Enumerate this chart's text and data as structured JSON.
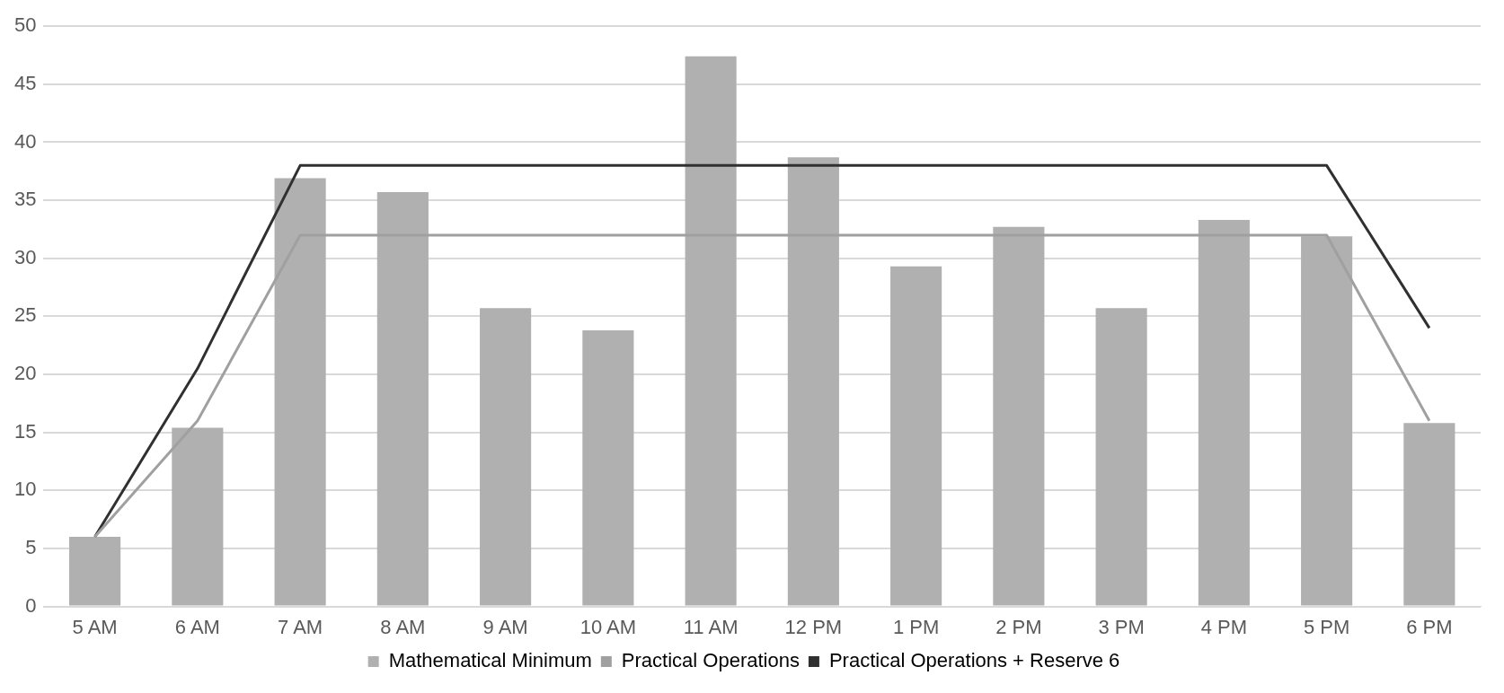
{
  "chart_data": {
    "type": "bar",
    "categories": [
      "5 AM",
      "6 AM",
      "7 AM",
      "8 AM",
      "9 AM",
      "10 AM",
      "11 AM",
      "12 PM",
      "1 PM",
      "2 PM",
      "3 PM",
      "4 PM",
      "5 PM",
      "6 PM"
    ],
    "series": [
      {
        "name": "Mathematical Minimum",
        "color": "#b0b0b0",
        "values": [
          6,
          15.4,
          36.9,
          35.7,
          25.7,
          23.8,
          47.4,
          38.7,
          29.3,
          32.7,
          25.7,
          33.3,
          31.9,
          15.8
        ]
      },
      {
        "name": "Practical Operations",
        "type": "line",
        "color": "#a0a0a0",
        "values": [
          6,
          16,
          32,
          32,
          32,
          32,
          32,
          32,
          32,
          32,
          32,
          32,
          32,
          16
        ]
      },
      {
        "name": "Practical Operations + Reserve 6",
        "type": "line",
        "color": "#303030",
        "values": [
          6,
          20.5,
          38,
          38,
          38,
          38,
          38,
          38,
          38,
          38,
          38,
          38,
          38,
          24
        ]
      }
    ],
    "ylim": [
      0,
      50
    ],
    "yticks": [
      0,
      5,
      10,
      15,
      20,
      25,
      30,
      35,
      40,
      45,
      50
    ],
    "grid": "y",
    "legend": "bottom",
    "marker": "none"
  }
}
